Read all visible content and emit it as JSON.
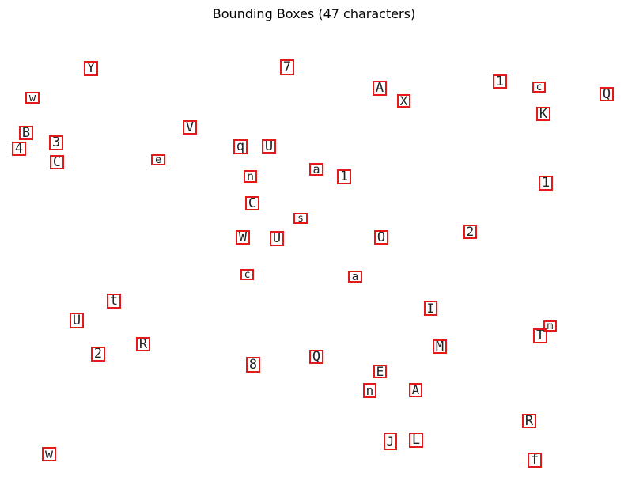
{
  "title": "Bounding Boxes (47 characters)",
  "characters": [
    "Y",
    "7",
    "w",
    "A",
    "X",
    "1",
    "c",
    "Q",
    "K",
    "B",
    "V",
    "3",
    "4",
    "q",
    "U",
    "C",
    "e",
    "a",
    "n",
    "1",
    "1",
    "C",
    "s",
    "2",
    "W",
    "U",
    "O",
    "c",
    "a",
    "t",
    "I",
    "U",
    "m",
    "R",
    "T",
    "M",
    "2",
    "8",
    "Q",
    "E",
    "n",
    "A",
    "R",
    "w",
    "J",
    "L",
    "f"
  ]
}
